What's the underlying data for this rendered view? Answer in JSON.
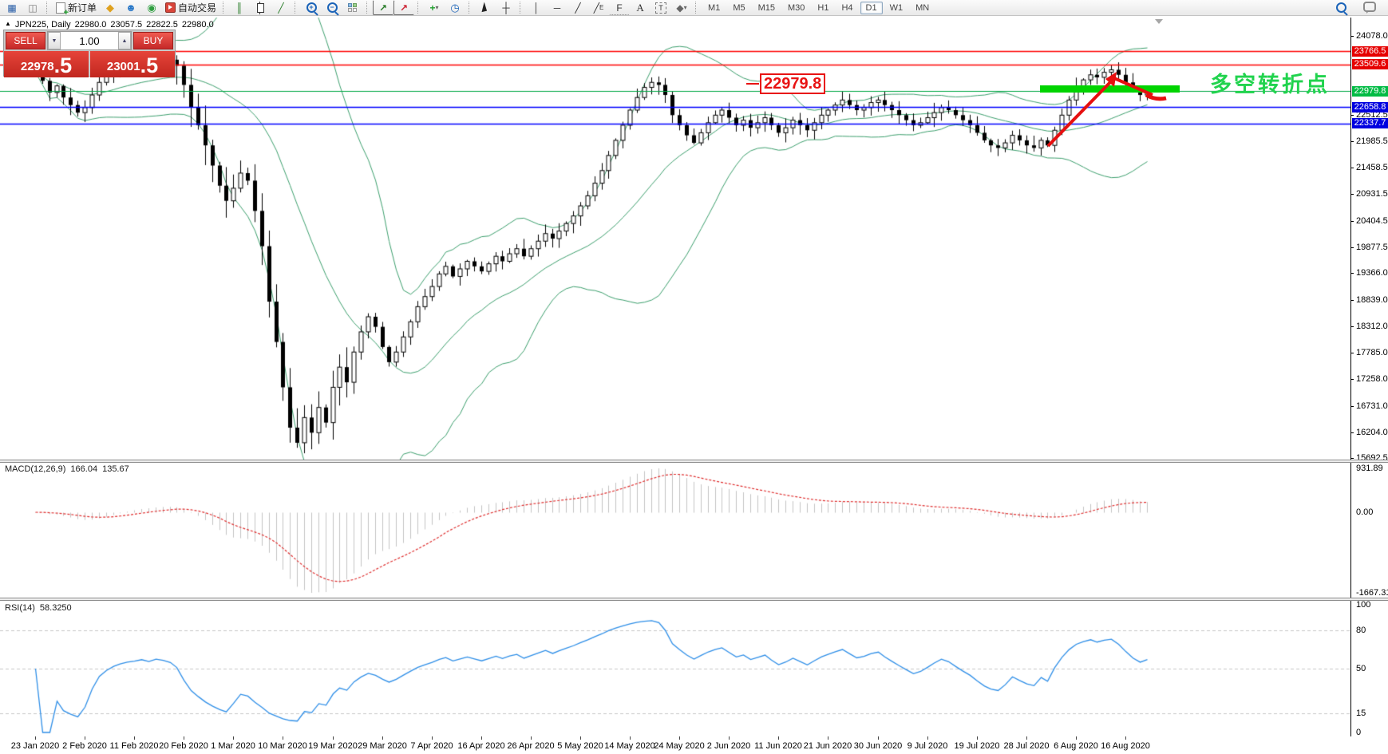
{
  "toolbar": {
    "new_order": "新订单",
    "auto_trading": "自动交易",
    "timeframes": [
      "M1",
      "M5",
      "M15",
      "M30",
      "H1",
      "H4",
      "D1",
      "W1",
      "MN"
    ],
    "active_timeframe": "D1",
    "tool_letters": {
      "channel": "E",
      "fibonacci": "F",
      "text": "A",
      "label": "T"
    }
  },
  "symbol_info": {
    "title": "JPN225, Daily",
    "open": "22980.0",
    "high": "23057.5",
    "low": "22822.5",
    "close": "22980.0"
  },
  "trade_panel": {
    "sell_label": "SELL",
    "buy_label": "BUY",
    "volume": "1.00",
    "sell_price_main": "22978",
    "sell_price_frac": ".5",
    "buy_price_main": "23001",
    "buy_price_frac": ".5"
  },
  "annotations": {
    "price_note": "22979.8",
    "turning_point": "多空转折点"
  },
  "price_axis": {
    "ticks": [
      {
        "label": "24078.0",
        "price": 24078.0
      },
      {
        "label": "22512.5",
        "price": 22512.5
      },
      {
        "label": "21985.5",
        "price": 21985.5
      },
      {
        "label": "21458.5",
        "price": 21458.5
      },
      {
        "label": "20931.5",
        "price": 20931.5
      },
      {
        "label": "20404.5",
        "price": 20404.5
      },
      {
        "label": "19877.5",
        "price": 19877.5
      },
      {
        "label": "19366.0",
        "price": 19366.0
      },
      {
        "label": "18839.0",
        "price": 18839.0
      },
      {
        "label": "18312.0",
        "price": 18312.0
      },
      {
        "label": "17785.0",
        "price": 17785.0
      },
      {
        "label": "17258.0",
        "price": 17258.0
      },
      {
        "label": "16731.0",
        "price": 16731.0
      },
      {
        "label": "16204.0",
        "price": 16204.0
      },
      {
        "label": "15692.5",
        "price": 15692.5
      }
    ],
    "tags": [
      {
        "label": "23766.5",
        "price": 23766.5,
        "bg": "#e60000",
        "fg": "#ffffff",
        "line": "#ff0000"
      },
      {
        "label": "23509.6",
        "price": 23509.6,
        "bg": "#e60000",
        "fg": "#ffffff",
        "line": "#ff0000"
      },
      {
        "label": "22979.8",
        "price": 22979.8,
        "bg": "#00bb44",
        "fg": "#ffffff",
        "line": "#00a844"
      },
      {
        "label": "22658.8",
        "price": 22658.8,
        "bg": "#0000e0",
        "fg": "#ffffff",
        "line": "#0000ff"
      },
      {
        "label": "22337.7",
        "price": 22337.7,
        "bg": "#0000e0",
        "fg": "#ffffff",
        "line": "#0000ff"
      }
    ]
  },
  "macd": {
    "label": "MACD(12,26,9)",
    "value_main": "166.04",
    "value_signal": "135.67",
    "axis": [
      "931.89",
      "0.00",
      "-1667.31"
    ]
  },
  "rsi": {
    "label": "RSI(14)",
    "value": "58.3250",
    "axis": [
      "100",
      "80",
      "50",
      "15",
      "0"
    ],
    "axis_values": [
      100,
      80,
      50,
      15,
      0
    ],
    "levels": [
      80,
      50,
      15
    ]
  },
  "date_axis": [
    "23 Jan 2020",
    "2 Feb 2020",
    "11 Feb 2020",
    "20 Feb 2020",
    "1 Mar 2020",
    "10 Mar 2020",
    "19 Mar 2020",
    "29 Mar 2020",
    "7 Apr 2020",
    "16 Apr 2020",
    "26 Apr 2020",
    "5 May 2020",
    "14 May 2020",
    "24 May 2020",
    "2 Jun 2020",
    "11 Jun 2020",
    "21 Jun 2020",
    "30 Jun 2020",
    "9 Jul 2020",
    "19 Jul 2020",
    "28 Jul 2020",
    "6 Aug 2020",
    "16 Aug 2020"
  ],
  "chart_data": {
    "type": "candlestick",
    "symbol": "JPN225",
    "period": "Daily",
    "bollinger": {
      "period": 20,
      "deviation": 2
    },
    "closes": [
      23350,
      23180,
      22950,
      23080,
      22850,
      22700,
      22550,
      22650,
      22900,
      23150,
      23300,
      23420,
      23500,
      23560,
      23600,
      23650,
      23600,
      23680,
      23650,
      23600,
      23480,
      23100,
      22650,
      22300,
      21900,
      21500,
      21100,
      20800,
      21050,
      21350,
      21200,
      20600,
      19900,
      18800,
      18000,
      17100,
      16300,
      16000,
      16500,
      16200,
      16700,
      16400,
      17100,
      17500,
      17200,
      17800,
      18200,
      18500,
      18300,
      17900,
      17600,
      17800,
      18100,
      18400,
      18700,
      18900,
      19100,
      19350,
      19500,
      19300,
      19450,
      19600,
      19500,
      19400,
      19550,
      19700,
      19600,
      19750,
      19850,
      19700,
      19850,
      20000,
      20150,
      20050,
      20200,
      20350,
      20500,
      20700,
      20900,
      21150,
      21400,
      21700,
      22000,
      22300,
      22600,
      22850,
      23050,
      23150,
      23100,
      22900,
      22500,
      22300,
      22100,
      21950,
      22150,
      22350,
      22500,
      22600,
      22450,
      22300,
      22400,
      22250,
      22350,
      22450,
      22300,
      22150,
      22250,
      22400,
      22300,
      22200,
      22350,
      22500,
      22600,
      22700,
      22800,
      22700,
      22600,
      22650,
      22750,
      22800,
      22700,
      22600,
      22500,
      22400,
      22300,
      22350,
      22450,
      22550,
      22650,
      22600,
      22500,
      22400,
      22300,
      22150,
      22000,
      21900,
      21850,
      21950,
      22100,
      22000,
      21900,
      21850,
      22000,
      21900,
      22200,
      22500,
      22800,
      23050,
      23200,
      23300,
      23250,
      23350,
      23400,
      23300,
      23150,
      23000,
      22900,
      22980
    ],
    "low_wick_override": {
      "index": 37,
      "low": 15900
    }
  }
}
